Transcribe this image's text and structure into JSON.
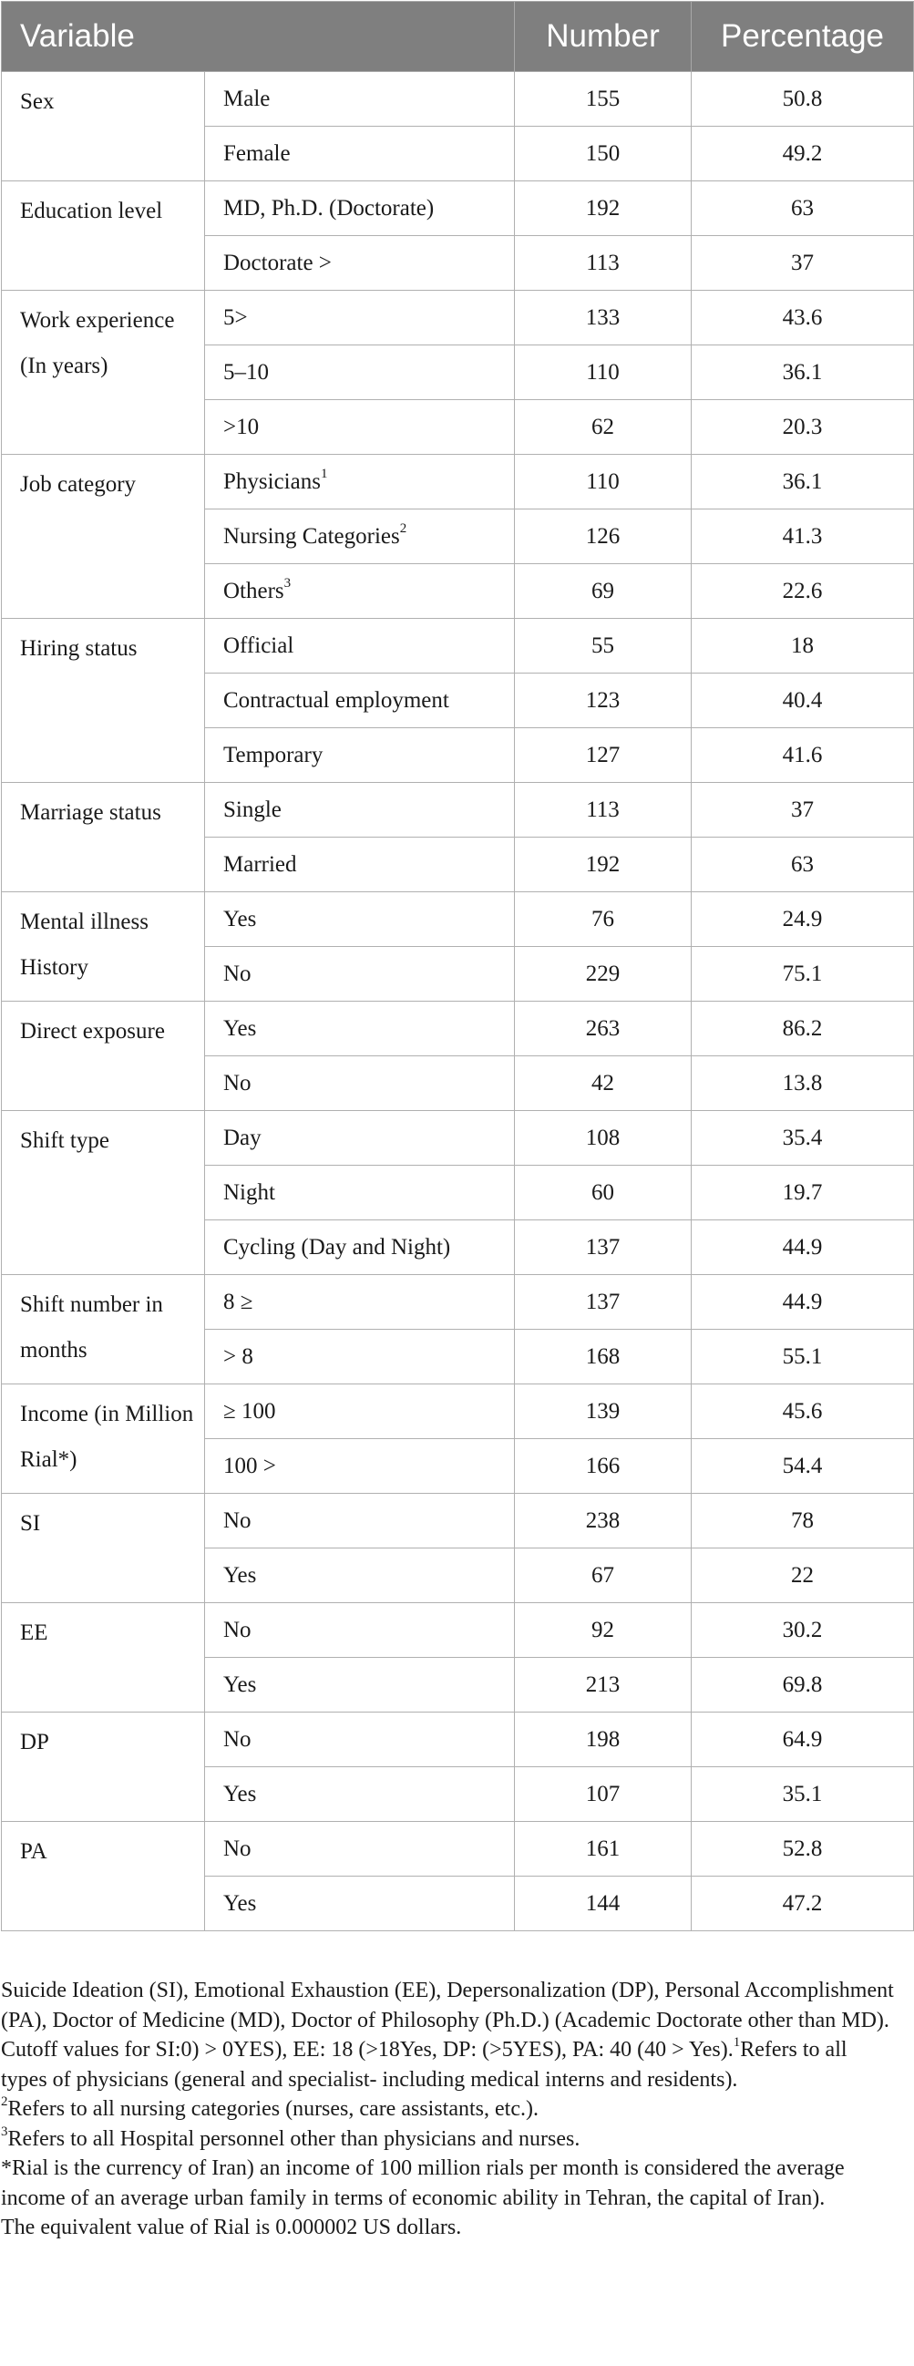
{
  "headers": [
    "Variable",
    "Number",
    "Percentage"
  ],
  "groups": [
    {
      "variable": "Sex",
      "rows": [
        {
          "category": "Male",
          "number": "155",
          "percentage": "50.8"
        },
        {
          "category": "Female",
          "number": "150",
          "percentage": "49.2"
        }
      ]
    },
    {
      "variable": "Education level",
      "rows": [
        {
          "category": "MD, Ph.D. (Doctorate)",
          "number": "192",
          "percentage": "63"
        },
        {
          "category": "Doctorate >",
          "number": "113",
          "percentage": "37"
        }
      ]
    },
    {
      "variable": "Work experience (In years)",
      "rows": [
        {
          "category": "5>",
          "number": "133",
          "percentage": "43.6"
        },
        {
          "category": "5–10",
          "number": "110",
          "percentage": "36.1"
        },
        {
          "category": ">10",
          "number": "62",
          "percentage": "20.3"
        }
      ]
    },
    {
      "variable": "Job category",
      "rows": [
        {
          "category": "Physicians",
          "sup": "1",
          "number": "110",
          "percentage": "36.1"
        },
        {
          "category": "Nursing Categories",
          "sup": "2",
          "number": "126",
          "percentage": "41.3"
        },
        {
          "category": "Others",
          "sup": "3",
          "number": "69",
          "percentage": "22.6"
        }
      ]
    },
    {
      "variable": "Hiring status",
      "rows": [
        {
          "category": "Official",
          "number": "55",
          "percentage": "18"
        },
        {
          "category": "Contractual employment",
          "number": "123",
          "percentage": "40.4"
        },
        {
          "category": "Temporary",
          "number": "127",
          "percentage": "41.6"
        }
      ]
    },
    {
      "variable": "Marriage status",
      "rows": [
        {
          "category": "Single",
          "number": "113",
          "percentage": "37"
        },
        {
          "category": "Married",
          "number": "192",
          "percentage": "63"
        }
      ]
    },
    {
      "variable": "Mental illness History",
      "rows": [
        {
          "category": "Yes",
          "number": "76",
          "percentage": "24.9"
        },
        {
          "category": "No",
          "number": "229",
          "percentage": "75.1"
        }
      ]
    },
    {
      "variable": "Direct exposure",
      "rows": [
        {
          "category": "Yes",
          "number": "263",
          "percentage": "86.2"
        },
        {
          "category": "No",
          "number": "42",
          "percentage": "13.8"
        }
      ]
    },
    {
      "variable": "Shift type",
      "rows": [
        {
          "category": "Day",
          "number": "108",
          "percentage": "35.4"
        },
        {
          "category": "Night",
          "number": "60",
          "percentage": "19.7"
        },
        {
          "category": "Cycling (Day and Night)",
          "number": "137",
          "percentage": "44.9"
        }
      ]
    },
    {
      "variable": "Shift number in months",
      "rows": [
        {
          "category": "8 ≥",
          "number": "137",
          "percentage": "44.9"
        },
        {
          "category": "> 8",
          "number": "168",
          "percentage": "55.1"
        }
      ]
    },
    {
      "variable": "Income (in Million Rial*)",
      "rows": [
        {
          "category": "≥ 100",
          "number": "139",
          "percentage": "45.6"
        },
        {
          "category": "100 >",
          "number": "166",
          "percentage": "54.4"
        }
      ]
    },
    {
      "variable": "SI",
      "rows": [
        {
          "category": "No",
          "number": "238",
          "percentage": "78"
        },
        {
          "category": "Yes",
          "number": "67",
          "percentage": "22"
        }
      ]
    },
    {
      "variable": "EE",
      "rows": [
        {
          "category": "No",
          "number": "92",
          "percentage": "30.2"
        },
        {
          "category": "Yes",
          "number": "213",
          "percentage": "69.8"
        }
      ]
    },
    {
      "variable": "DP",
      "rows": [
        {
          "category": "No",
          "number": "198",
          "percentage": "64.9"
        },
        {
          "category": "Yes",
          "number": "107",
          "percentage": "35.1"
        }
      ]
    },
    {
      "variable": "PA",
      "rows": [
        {
          "category": "No",
          "number": "161",
          "percentage": "52.8"
        },
        {
          "category": "Yes",
          "number": "144",
          "percentage": "47.2"
        }
      ]
    }
  ],
  "notes": {
    "abbreviations": "Suicide Ideation (SI), Emotional Exhaustion (EE), Depersonalization (DP), Personal Accomplishment (PA), Doctor of Medicine (MD), Doctor of Philosophy (Ph.D.) (Academic Doctorate other than MD).",
    "cutoff": "Cutoff values for SI:0) > 0YES), EE: 18 (>18Yes, DP: (>5YES), PA: 40 (40 > Yes).",
    "fn1_mark": "1",
    "fn1": "Refers to all types of physicians (general and specialist- including medical interns and residents).",
    "fn2_mark": "2",
    "fn2": "Refers to all nursing categories (nurses, care assistants, etc.).",
    "fn3_mark": "3",
    "fn3": "Refers to all Hospital personnel other than physicians and nurses.",
    "rial": "*Rial is the currency of Iran) an income of 100 million rials per month is considered the average income of an average urban family in terms of economic ability in Tehran, the capital of Iran).",
    "equivalent": "The equivalent value of Rial is 0.000002 US dollars."
  }
}
